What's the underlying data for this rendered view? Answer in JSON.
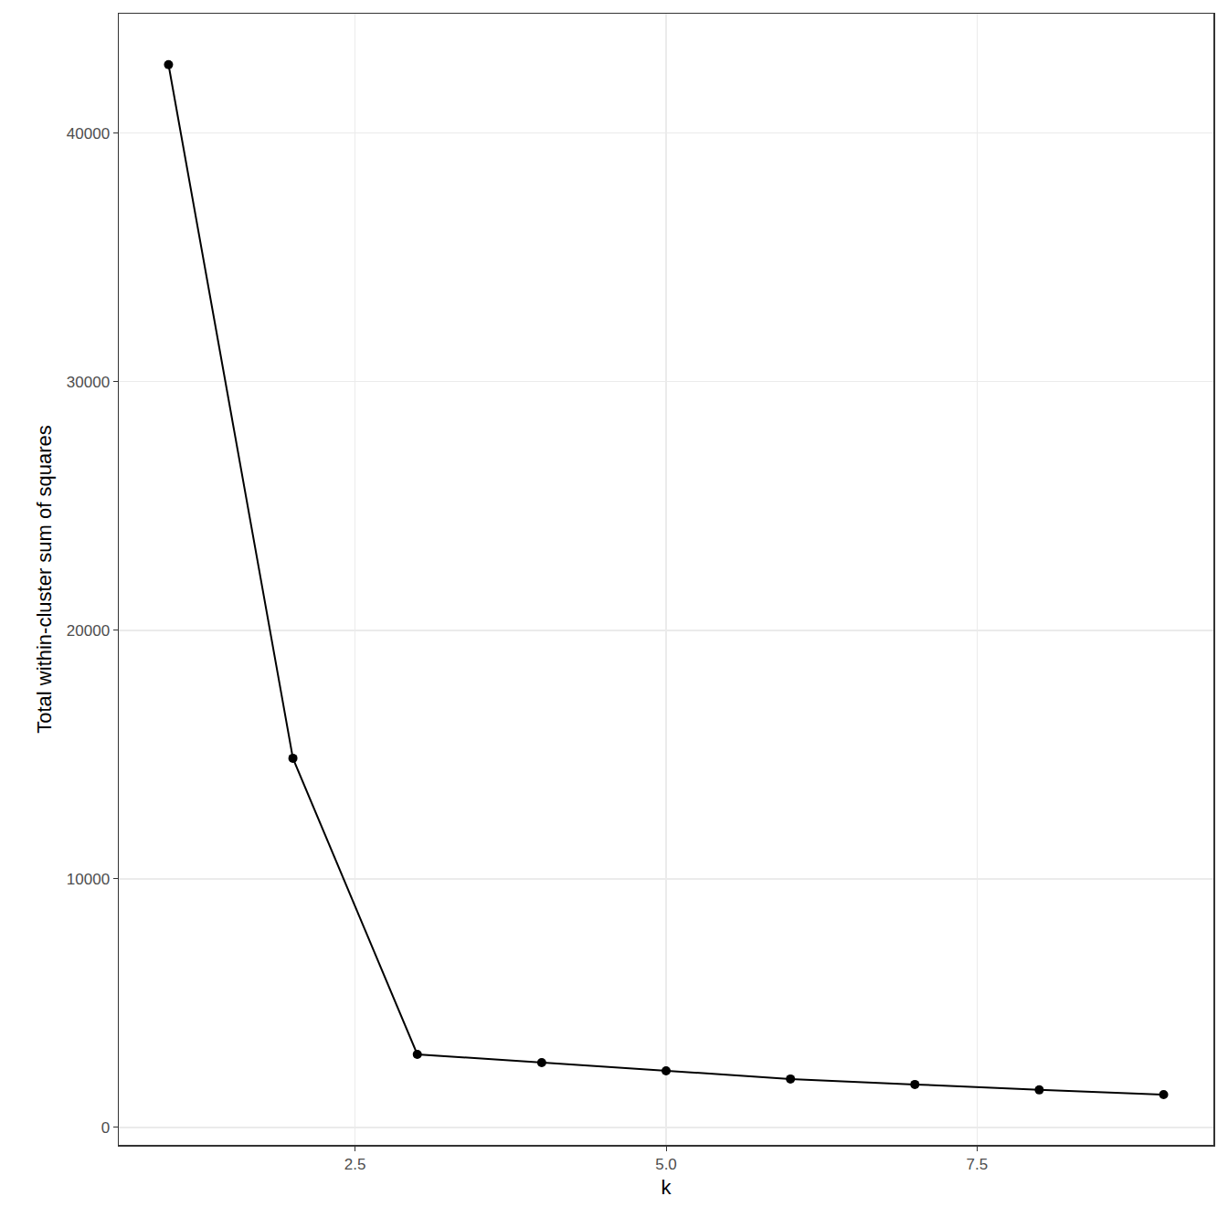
{
  "chart_data": {
    "type": "line",
    "x_label": "k",
    "y_label": "Total within-cluster sum of squares",
    "x": [
      1,
      2,
      3,
      4,
      5,
      6,
      7,
      8,
      9
    ],
    "values": [
      42750,
      14850,
      2940,
      2610,
      2280,
      1950,
      1730,
      1510,
      1320
    ],
    "color": "#000000",
    "marker": "circle",
    "line_style": "solid",
    "xlim": [
      0.6,
      9.4
    ],
    "xticks": [
      2.5,
      {
        "value": 5,
        "label": "5.0"
      },
      7.5
    ],
    "ylim": [
      -700,
      44800
    ],
    "yticks": [
      0,
      10000,
      20000,
      30000,
      40000
    ],
    "grid": true
  }
}
